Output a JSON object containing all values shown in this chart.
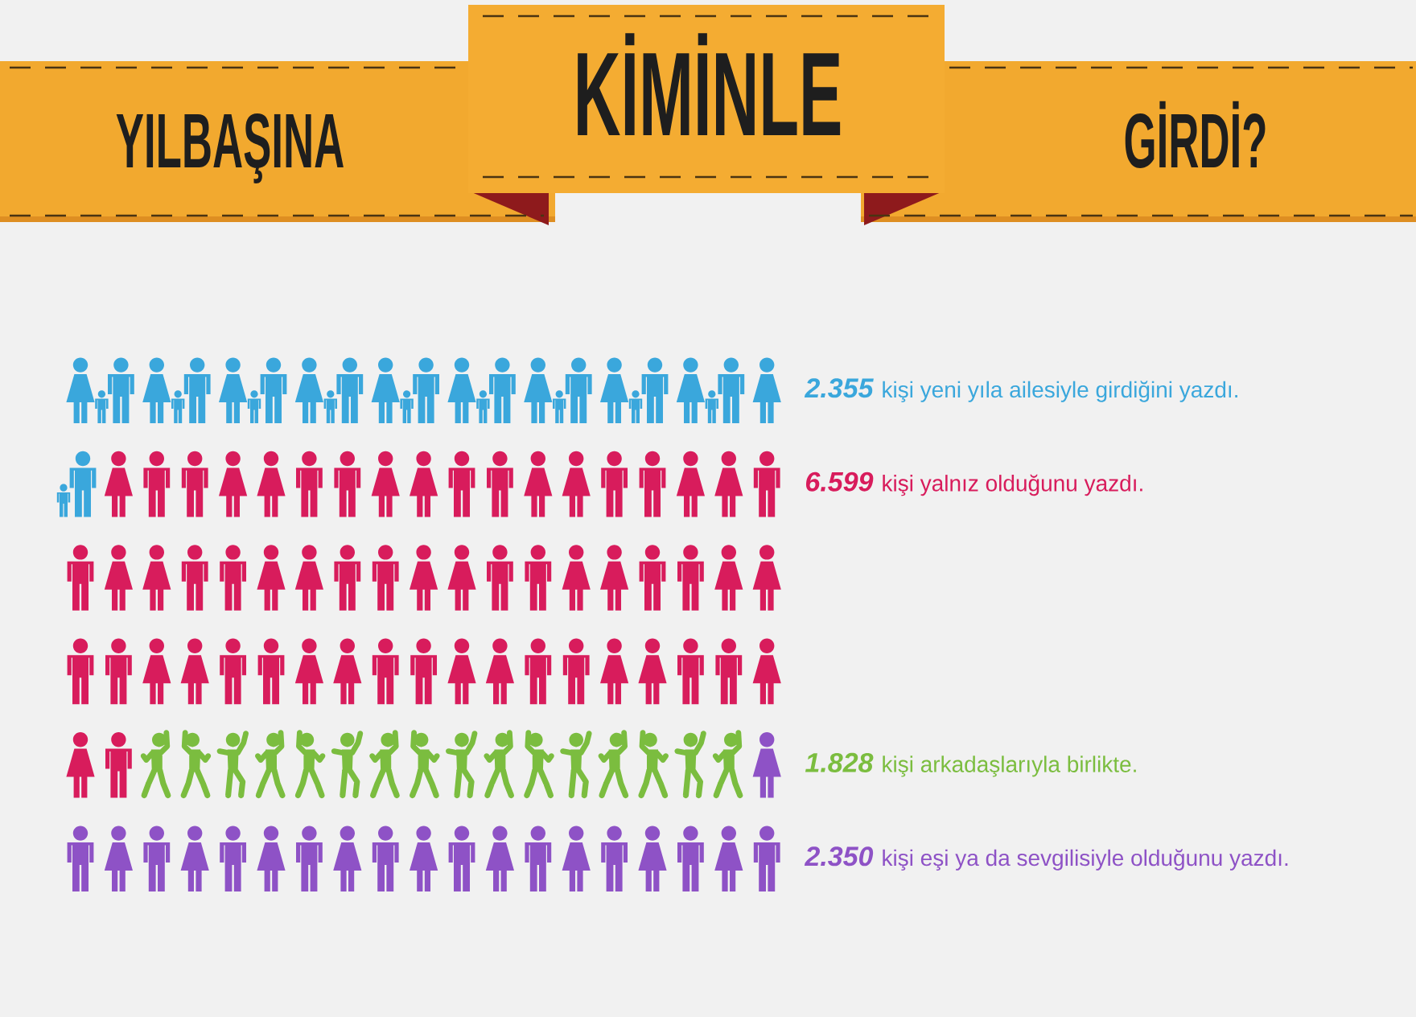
{
  "chart_data": {
    "type": "other",
    "title": "KİMİNLE",
    "annotations": [
      "YILBAŞINA",
      "GİRDİ?"
    ],
    "categories": [
      "kişi yeni yıla ailesiyle girdiğini yazdı.",
      "kişi yalnız olduğunu yazdı.",
      "kişi arkadaşlarıyla birlikte.",
      "kişi eşi ya da sevgilisiyle olduğunu yazdı."
    ],
    "values": [
      2355,
      6599,
      1828,
      2350
    ],
    "value_labels": [
      "2.355",
      "6.599",
      "1.828",
      "2.350"
    ],
    "colors": [
      "#3aa7dc",
      "#d81c5c",
      "#7bbd3f",
      "#8e52c6"
    ]
  }
}
